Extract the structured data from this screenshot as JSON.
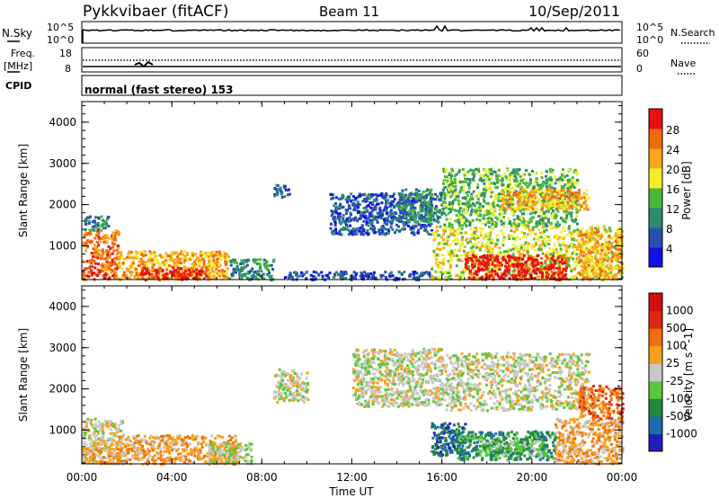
{
  "header": {
    "title": "Pykkvibaer (fitACF)",
    "beam": "Beam 11",
    "date": "10/Sep/2011"
  },
  "nsky_panel": {
    "left_label": "N.Sky",
    "left_ticks": [
      "10^5",
      "10^0"
    ],
    "right_ticks": [
      "10^5",
      "10^0"
    ],
    "right_label": "N.Search"
  },
  "freq_panel": {
    "left_label_1": "Freq.",
    "left_label_2": "[MHz]",
    "left_ticks": [
      "18",
      "8"
    ],
    "right_ticks": [
      "60",
      "0"
    ],
    "right_label": "Nave"
  },
  "cpid_panel": {
    "label": "CPID",
    "text": "normal (fast stereo) 153"
  },
  "xaxis": {
    "label": "Time UT",
    "tick_labels": [
      "00:00",
      "04:00",
      "08:00",
      "12:00",
      "16:00",
      "20:00",
      "00:00"
    ]
  },
  "chart_data": [
    {
      "type": "heatmap",
      "name": "power",
      "ylabel": "Slant Range [km]",
      "xlabel": "Time UT",
      "xlim": [
        0,
        24
      ],
      "ylim": [
        180,
        4500
      ],
      "y_tick_labels": [
        "1000",
        "2000",
        "3000",
        "4000"
      ],
      "y_ticks": [
        1000,
        2000,
        3000,
        4000
      ],
      "colorbar": {
        "label": "Power [dB]",
        "tick_labels": [
          "4",
          "8",
          "12",
          "16",
          "20",
          "24",
          "28"
        ],
        "colors": [
          "#1010e8",
          "#2a4fb0",
          "#2f8a72",
          "#48b83a",
          "#f0f02a",
          "#f8a81c",
          "#f06a0a",
          "#e81010"
        ]
      },
      "regions": [
        {
          "t0": 0.0,
          "t1": 1.6,
          "r0": 200,
          "r1": 1400,
          "level": 6
        },
        {
          "t0": 0.1,
          "t1": 1.2,
          "r0": 1400,
          "r1": 1750,
          "level": 2
        },
        {
          "t0": 1.6,
          "t1": 6.5,
          "r0": 200,
          "r1": 900,
          "level": 5
        },
        {
          "t0": 2.5,
          "t1": 5.5,
          "r0": 200,
          "r1": 500,
          "level": 7
        },
        {
          "t0": 6.5,
          "t1": 8.5,
          "r0": 200,
          "r1": 700,
          "level": 2
        },
        {
          "t0": 8.5,
          "t1": 9.2,
          "r0": 2200,
          "r1": 2500,
          "level": 1
        },
        {
          "t0": 9.0,
          "t1": 15.5,
          "r0": 200,
          "r1": 400,
          "level": 1
        },
        {
          "t0": 11.0,
          "t1": 15.5,
          "r0": 1300,
          "r1": 2300,
          "level": 1
        },
        {
          "t0": 14.0,
          "t1": 16.0,
          "r0": 1600,
          "r1": 2400,
          "level": 2
        },
        {
          "t0": 15.5,
          "t1": 24.0,
          "r0": 200,
          "r1": 1500,
          "level": 4
        },
        {
          "t0": 17.0,
          "t1": 21.5,
          "r0": 200,
          "r1": 800,
          "level": 7
        },
        {
          "t0": 16.0,
          "t1": 22.0,
          "r0": 1500,
          "r1": 2900,
          "level": 3
        },
        {
          "t0": 18.5,
          "t1": 22.5,
          "r0": 1900,
          "r1": 2400,
          "level": 5
        },
        {
          "t0": 22.0,
          "t1": 24.0,
          "r0": 200,
          "r1": 1400,
          "level": 5
        }
      ]
    },
    {
      "type": "heatmap",
      "name": "velocity",
      "ylabel": "Slant Range [km]",
      "xlabel": "Time UT",
      "xlim": [
        0,
        24
      ],
      "ylim": [
        180,
        4500
      ],
      "y_tick_labels": [
        "1000",
        "2000",
        "3000",
        "4000"
      ],
      "y_ticks": [
        1000,
        2000,
        3000,
        4000
      ],
      "colorbar": {
        "label": "Velocity [m s^-1]",
        "tick_labels": [
          "1000",
          "500",
          "100",
          "25",
          "-25",
          "-100",
          "-500",
          "-1000"
        ],
        "colors": [
          "#2020b8",
          "#1f6aa8",
          "#1f8a40",
          "#5ac83c",
          "#c8c8c8",
          "#f8a01c",
          "#f07010",
          "#e02810",
          "#d01010"
        ]
      },
      "regions": [
        {
          "t0": 0.0,
          "t1": 1.8,
          "r0": 200,
          "r1": 1300,
          "level": 4
        },
        {
          "t0": 0.0,
          "t1": 1.6,
          "r0": 200,
          "r1": 600,
          "level": 5
        },
        {
          "t0": 1.6,
          "t1": 6.8,
          "r0": 200,
          "r1": 900,
          "level": 5
        },
        {
          "t0": 5.5,
          "t1": 7.5,
          "r0": 200,
          "r1": 700,
          "level": 4
        },
        {
          "t0": 8.5,
          "t1": 10.0,
          "r0": 1700,
          "r1": 2500,
          "level": 4
        },
        {
          "t0": 12.0,
          "t1": 16.0,
          "r0": 1600,
          "r1": 3000,
          "level": 4
        },
        {
          "t0": 15.5,
          "t1": 17.0,
          "r0": 400,
          "r1": 1200,
          "level": 1
        },
        {
          "t0": 16.5,
          "t1": 21.0,
          "r0": 300,
          "r1": 1000,
          "level": 2
        },
        {
          "t0": 17.5,
          "t1": 20.5,
          "r0": 400,
          "r1": 800,
          "level": 3
        },
        {
          "t0": 16.0,
          "t1": 22.5,
          "r0": 1500,
          "r1": 2900,
          "level": 4
        },
        {
          "t0": 21.0,
          "t1": 24.0,
          "r0": 200,
          "r1": 1300,
          "level": 5
        },
        {
          "t0": 22.0,
          "t1": 24.0,
          "r0": 1300,
          "r1": 2100,
          "level": 6
        }
      ]
    }
  ]
}
